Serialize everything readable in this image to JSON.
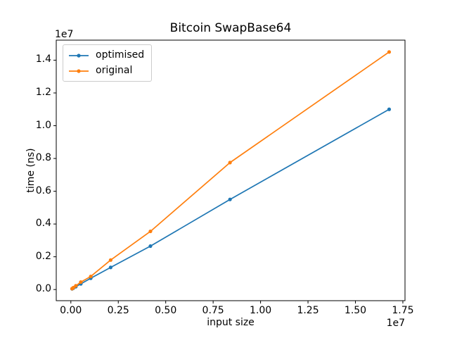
{
  "chart_data": {
    "type": "line",
    "title": "Bitcoin SwapBase64",
    "xlabel": "input size",
    "ylabel": "time (ns)",
    "x_scale_offset_text": "1e7",
    "y_scale_offset_text": "1e7",
    "grid": false,
    "axis_color": "#000000",
    "x": [
      65536,
      131072,
      262144,
      524288,
      1048576,
      2097152,
      4194304,
      8388608,
      16777216
    ],
    "series": [
      {
        "name": "optimised",
        "color": "#1f77b4",
        "values": [
          43000,
          86000,
          172000,
          345000,
          690000,
          1350000,
          2650000,
          5500000,
          11000000
        ]
      },
      {
        "name": "original",
        "color": "#ff7f0e",
        "values": [
          57000,
          114000,
          228000,
          456000,
          800000,
          1800000,
          3550000,
          7750000,
          14500000
        ]
      }
    ],
    "xlim": [
      -770048,
      17612800
    ],
    "ylim": [
      -679850,
      15222850
    ],
    "xticks": {
      "values": [
        0,
        2500000,
        5000000,
        7500000,
        10000000,
        12500000,
        15000000,
        17500000
      ],
      "labels": [
        "0.00",
        "0.25",
        "0.50",
        "0.75",
        "1.00",
        "1.25",
        "1.50",
        "1.75"
      ]
    },
    "yticks": {
      "values": [
        0,
        2000000,
        4000000,
        6000000,
        8000000,
        10000000,
        12000000,
        14000000
      ],
      "labels": [
        "0.0",
        "0.2",
        "0.4",
        "0.6",
        "0.8",
        "1.0",
        "1.2",
        "1.4"
      ]
    },
    "legend": {
      "position": "upper-left"
    }
  }
}
